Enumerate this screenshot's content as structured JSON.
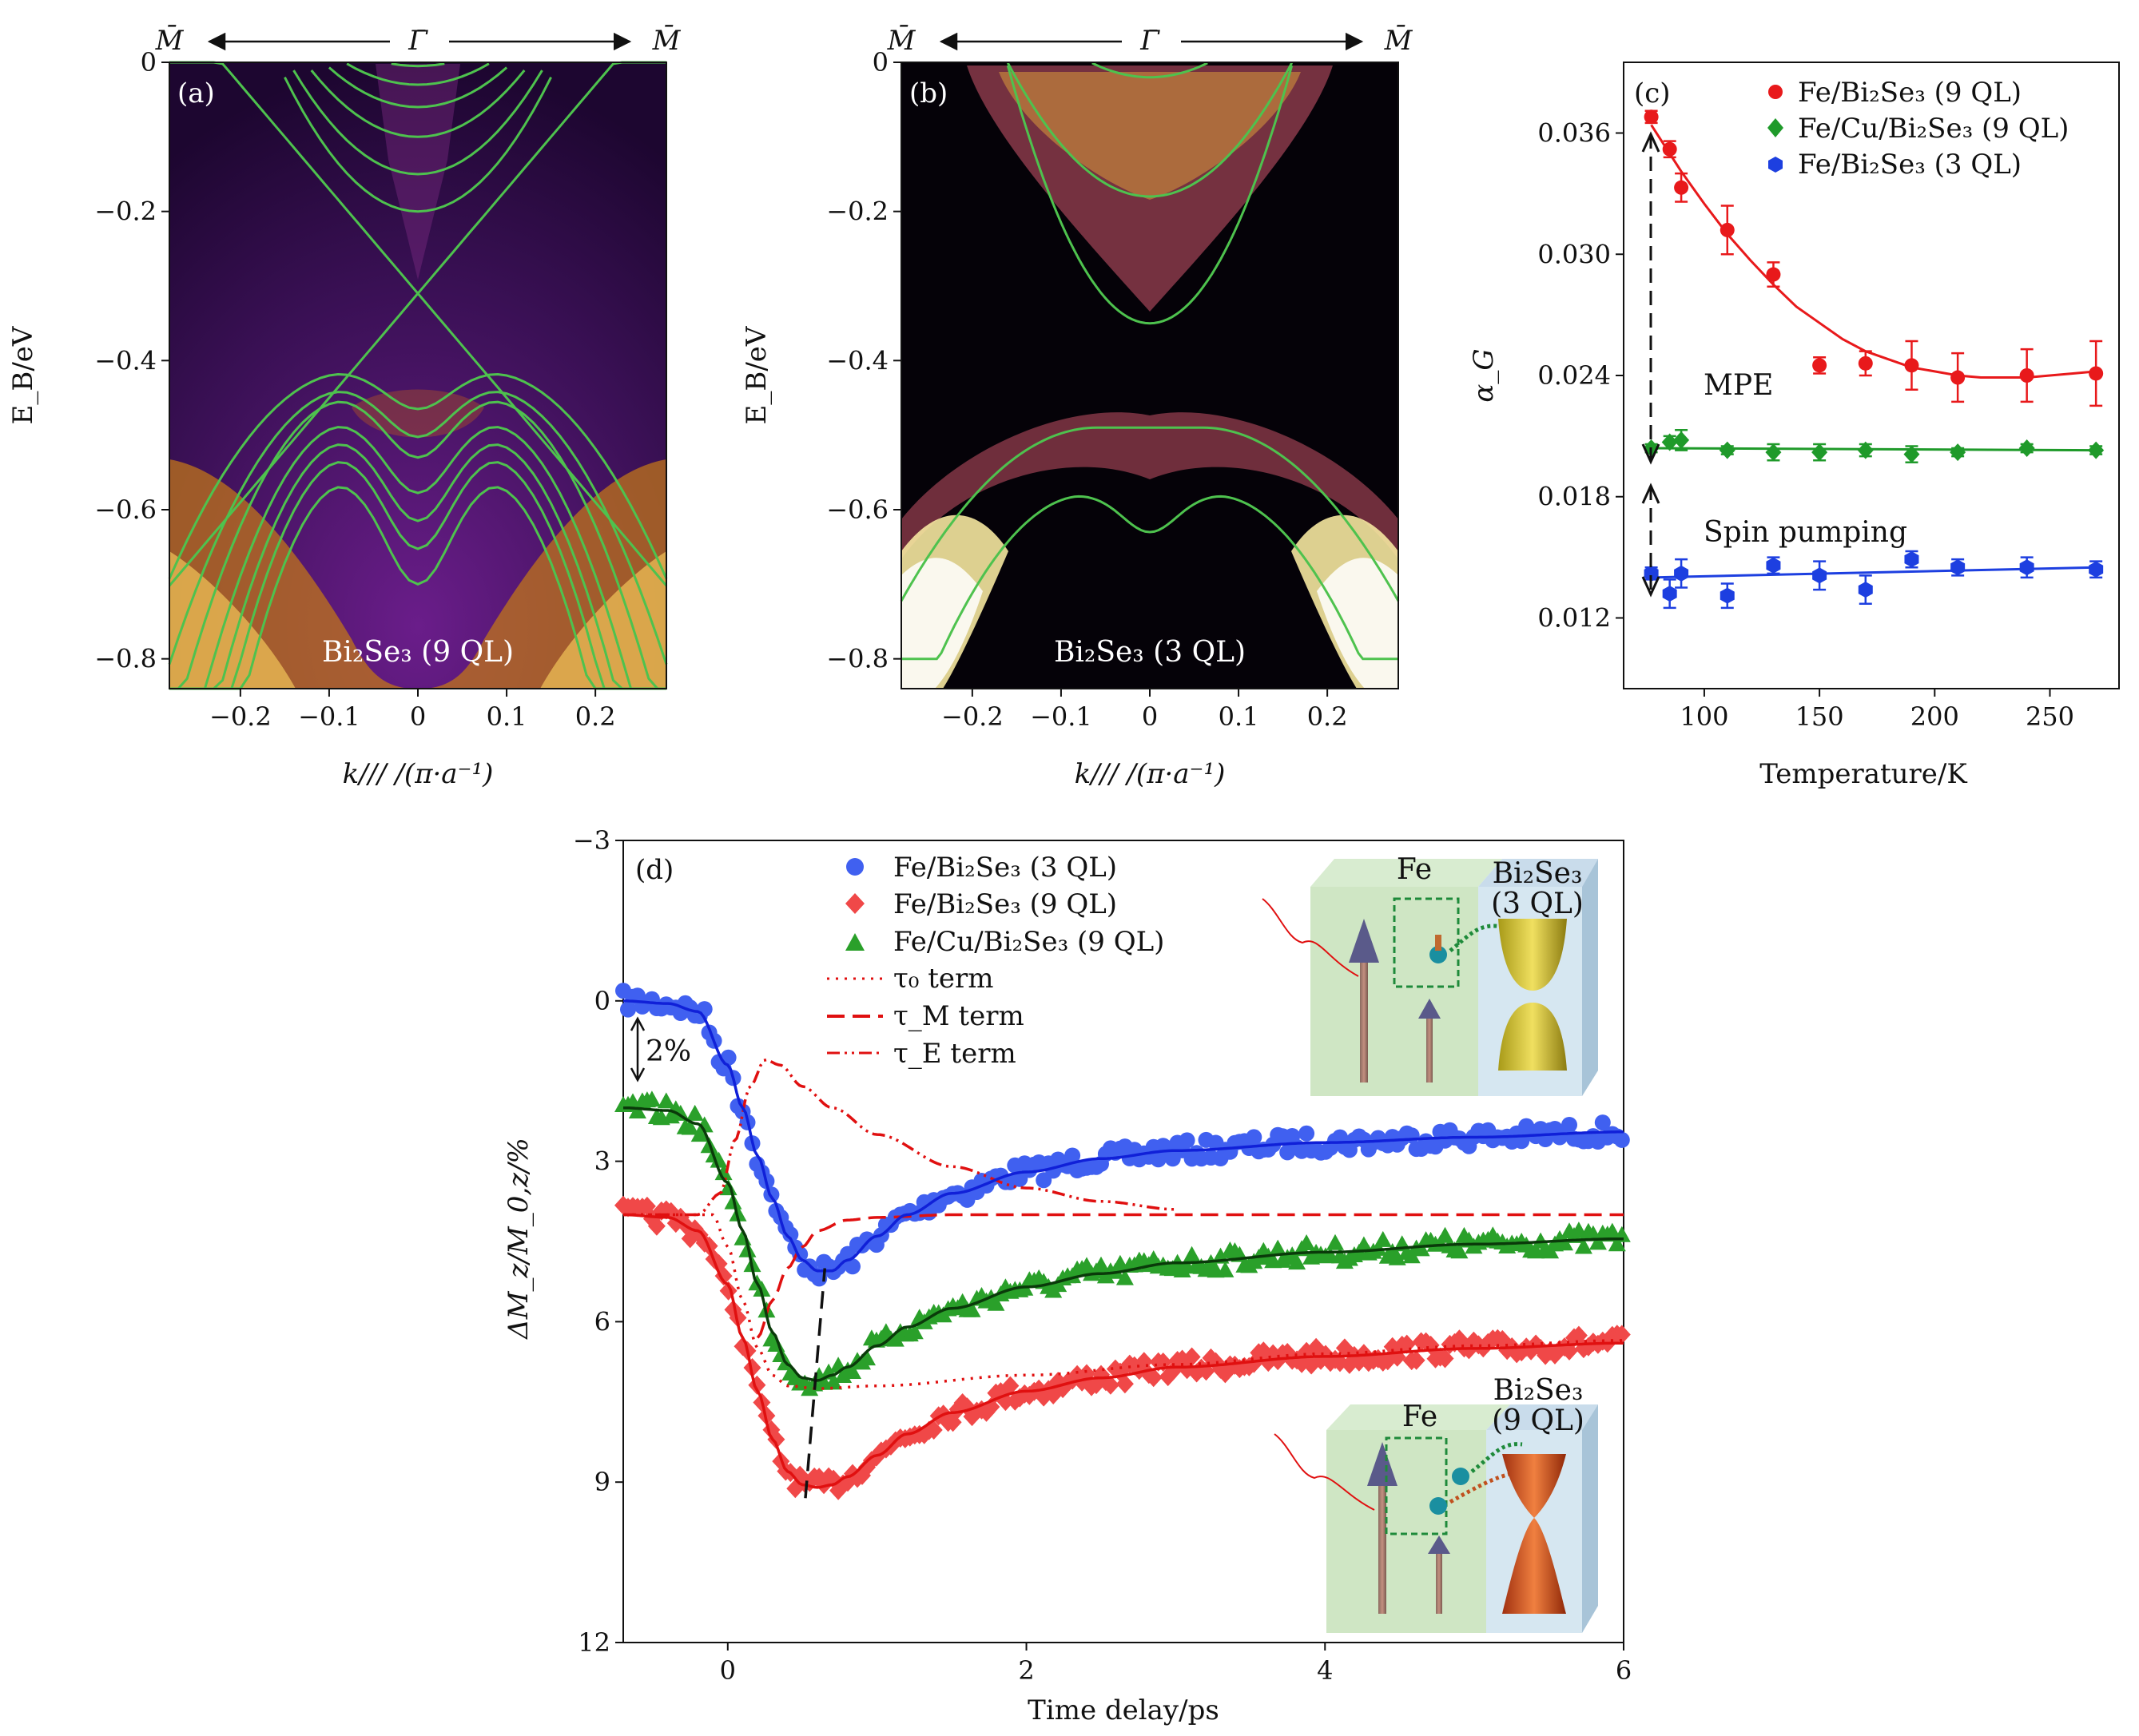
{
  "chart_data": [
    {
      "id": "a",
      "type": "heatmap",
      "panel_label": "(a)",
      "sample_label": "Bi₂Se₃ (9 QL)",
      "xlabel": "k/// /(π·a⁻¹)",
      "ylabel": "E_B/eV",
      "xlim": [
        -0.28,
        0.28
      ],
      "ylim": [
        -0.84,
        0.0
      ],
      "xticks": [
        -0.2,
        -0.1,
        0,
        0.1,
        0.2
      ],
      "xtick_labels": [
        "−0.2",
        "−0.1",
        "0",
        "0.1",
        "0.2"
      ],
      "yticks": [
        0,
        -0.2,
        -0.4,
        -0.6,
        -0.8
      ],
      "ytick_labels": [
        "0",
        "−0.2",
        "−0.4",
        "−0.6",
        "−0.8"
      ],
      "top_labels": [
        "M̄",
        "Γ̄",
        "M̄"
      ],
      "band_color": "#4ec24e",
      "conduction_band_minima": [
        -0.005,
        -0.03,
        -0.06,
        -0.1,
        -0.15,
        -0.2
      ],
      "dirac_point": -0.31,
      "valence_band_tops": [
        -0.41,
        -0.44,
        -0.46,
        -0.5,
        -0.53,
        -0.56,
        -0.6
      ]
    },
    {
      "id": "b",
      "type": "heatmap",
      "panel_label": "(b)",
      "sample_label": "Bi₂Se₃ (3 QL)",
      "xlabel": "k/// /(π·a⁻¹)",
      "ylabel": "E_B/eV",
      "xlim": [
        -0.28,
        0.28
      ],
      "ylim": [
        -0.84,
        0.0
      ],
      "xticks": [
        -0.2,
        -0.1,
        0,
        0.1,
        0.2
      ],
      "xtick_labels": [
        "−0.2",
        "−0.1",
        "0",
        "0.1",
        "0.2"
      ],
      "yticks": [
        0,
        -0.2,
        -0.4,
        -0.6,
        -0.8
      ],
      "ytick_labels": [
        "0",
        "−0.2",
        "−0.4",
        "−0.6",
        "−0.8"
      ],
      "top_labels": [
        "M̄",
        "Γ̄",
        "M̄"
      ],
      "band_color": "#4ec24e",
      "conduction_band_minima": [
        -0.02,
        -0.18,
        -0.35
      ],
      "valence_band_tops": [
        -0.49,
        -0.63
      ]
    },
    {
      "id": "c",
      "type": "scatter",
      "panel_label": "(c)",
      "xlabel": "Temperature/K",
      "ylabel": "α_G",
      "xlim": [
        65,
        280
      ],
      "ylim": [
        0.0085,
        0.0395
      ],
      "xticks": [
        100,
        150,
        200,
        250
      ],
      "xtick_labels": [
        "100",
        "150",
        "200",
        "250"
      ],
      "yticks": [
        0.012,
        0.018,
        0.024,
        0.03,
        0.036
      ],
      "ytick_labels": [
        "0.012",
        "0.018",
        "0.024",
        "0.030",
        "0.036"
      ],
      "annotations": [
        "MPE",
        "Spin pumping"
      ],
      "series": [
        {
          "name": "Fe/Bi₂Se₃ (9 QL)",
          "color": "#e8191b",
          "marker": "circle",
          "x": [
            77,
            85,
            90,
            110,
            130,
            150,
            170,
            190,
            210,
            240,
            270
          ],
          "y": [
            0.0368,
            0.0352,
            0.0333,
            0.0312,
            0.029,
            0.0245,
            0.0246,
            0.0245,
            0.0239,
            0.024,
            0.0241
          ],
          "err": [
            0.0003,
            0.0004,
            0.0007,
            0.0012,
            0.0006,
            0.0004,
            0.0006,
            0.0012,
            0.0012,
            0.0013,
            0.0016
          ],
          "fit_x": [
            77,
            90,
            100,
            110,
            120,
            130,
            140,
            150,
            160,
            170,
            180,
            190,
            200,
            210,
            220,
            230,
            240,
            250,
            260,
            270
          ],
          "fit_y": [
            0.0364,
            0.0341,
            0.0325,
            0.031,
            0.0297,
            0.0285,
            0.0274,
            0.0266,
            0.0258,
            0.0252,
            0.0248,
            0.0244,
            0.0242,
            0.024,
            0.0239,
            0.0239,
            0.0239,
            0.024,
            0.0241,
            0.0242
          ]
        },
        {
          "name": "Fe/Cu/Bi₂Se₃ (9 QL)",
          "color": "#1f9a2a",
          "marker": "diamond",
          "x": [
            77,
            85,
            90,
            110,
            130,
            150,
            170,
            190,
            210,
            240,
            270
          ],
          "y": [
            0.0204,
            0.0207,
            0.0208,
            0.0203,
            0.0202,
            0.0202,
            0.0203,
            0.0201,
            0.0202,
            0.0204,
            0.0203
          ],
          "err": [
            0.0002,
            0.0003,
            0.0005,
            0.0002,
            0.0004,
            0.0004,
            0.0003,
            0.0004,
            0.0002,
            0.0002,
            0.0002
          ],
          "fit_x": [
            77,
            270
          ],
          "fit_y": [
            0.0204,
            0.0203
          ]
        },
        {
          "name": "Fe/Bi₂Se₃ (3 QL)",
          "color": "#1d3fe0",
          "marker": "hexagon",
          "x": [
            77,
            85,
            90,
            110,
            130,
            150,
            170,
            190,
            210,
            240,
            270
          ],
          "y": [
            0.0142,
            0.0132,
            0.0142,
            0.0131,
            0.0146,
            0.0141,
            0.0134,
            0.0149,
            0.0145,
            0.0145,
            0.0144
          ],
          "err": [
            0.0003,
            0.0007,
            0.0007,
            0.0006,
            0.0004,
            0.0007,
            0.0007,
            0.0004,
            0.0004,
            0.0005,
            0.0004
          ],
          "fit_x": [
            77,
            270
          ],
          "fit_y": [
            0.014,
            0.0145
          ]
        }
      ]
    },
    {
      "id": "d",
      "type": "scatter",
      "panel_label": "(d)",
      "xlabel": "Time delay/ps",
      "ylabel": "ΔM_z/M_0,z/%",
      "xlim": [
        -0.7,
        6.0
      ],
      "ylim": [
        12,
        -3
      ],
      "xticks": [
        0,
        2,
        4,
        6
      ],
      "xtick_labels": [
        "0",
        "2",
        "4",
        "6"
      ],
      "yticks": [
        -3,
        0,
        3,
        6,
        9,
        12
      ],
      "ytick_labels": [
        "−3",
        "0",
        "3",
        "6",
        "9",
        "12"
      ],
      "scale_bar_label": "2%",
      "legend": [
        "Fe/Bi₂Se₃ (3 QL)",
        "Fe/Bi₂Se₃ (9 QL)",
        "Fe/Cu/Bi₂Se₃ (9 QL)",
        "τ₀ term",
        "τ_M term",
        "τ_E term"
      ],
      "series": [
        {
          "name": "Fe/Bi₂Se₃ (3 QL)",
          "color": "#4060f0",
          "fit_color": "#1020d8",
          "marker": "circle",
          "x": [
            -0.7,
            -0.4,
            -0.2,
            0.0,
            0.1,
            0.2,
            0.3,
            0.4,
            0.5,
            0.6,
            0.7,
            0.8,
            1.0,
            1.2,
            1.5,
            2.0,
            2.5,
            3.0,
            4.0,
            5.0,
            6.0
          ],
          "y": [
            0.0,
            0.05,
            0.2,
            1.2,
            2.0,
            2.9,
            3.7,
            4.4,
            4.85,
            5.05,
            5.05,
            4.85,
            4.4,
            4.0,
            3.6,
            3.2,
            2.95,
            2.8,
            2.65,
            2.55,
            2.45
          ]
        },
        {
          "name": "Fe/Bi₂Se₃ (9 QL)",
          "color": "#f04848",
          "fit_color": "#e01010",
          "marker": "diamond",
          "x": [
            -0.7,
            -0.4,
            -0.2,
            0.0,
            0.1,
            0.2,
            0.3,
            0.4,
            0.5,
            0.6,
            0.7,
            0.8,
            1.0,
            1.2,
            1.5,
            2.0,
            2.5,
            3.0,
            4.0,
            5.0,
            6.0
          ],
          "y": [
            4.0,
            4.05,
            4.3,
            5.3,
            6.3,
            7.3,
            8.2,
            8.8,
            9.05,
            9.1,
            9.05,
            8.9,
            8.5,
            8.1,
            7.7,
            7.3,
            7.05,
            6.85,
            6.65,
            6.5,
            6.4
          ]
        },
        {
          "name": "Fe/Cu/Bi₂Se₃ (9 QL)",
          "color": "#2aa02a",
          "fit_color": "#0a3a0a",
          "marker": "triangle",
          "x": [
            -0.7,
            -0.4,
            -0.2,
            0.0,
            0.1,
            0.2,
            0.3,
            0.4,
            0.5,
            0.6,
            0.7,
            0.8,
            1.0,
            1.2,
            1.5,
            2.0,
            2.5,
            3.0,
            4.0,
            5.0,
            6.0
          ],
          "y": [
            2.0,
            2.05,
            2.3,
            3.4,
            4.3,
            5.3,
            6.2,
            6.8,
            7.05,
            7.1,
            7.0,
            6.85,
            6.45,
            6.1,
            5.75,
            5.35,
            5.1,
            4.9,
            4.7,
            4.55,
            4.45
          ]
        }
      ],
      "terms": [
        {
          "name": "τ₀ term",
          "color": "#e01010",
          "style": "dotted",
          "x": [
            -0.7,
            -0.1,
            0.0,
            0.1,
            0.2,
            0.3,
            0.4,
            0.6,
            1.0,
            2.0,
            3.0,
            4.0,
            5.0,
            6.0
          ],
          "y": [
            4.0,
            4.0,
            4.6,
            5.6,
            6.5,
            7.0,
            7.2,
            7.25,
            7.2,
            7.0,
            6.8,
            6.6,
            6.45,
            6.35
          ]
        },
        {
          "name": "τ_M term",
          "color": "#e01010",
          "style": "dashed",
          "x": [
            0.2,
            0.3,
            0.4,
            0.5,
            0.6,
            0.8,
            1.0,
            1.5,
            2.0,
            3.0,
            4.0,
            5.0,
            6.0
          ],
          "y": [
            6.3,
            5.6,
            5.0,
            4.6,
            4.3,
            4.1,
            4.05,
            4.0,
            4.0,
            4.0,
            4.0,
            4.0,
            4.0
          ]
        },
        {
          "name": "τ_E term",
          "color": "#e01010",
          "style": "dashdotdot",
          "x": [
            -0.7,
            -0.2,
            -0.05,
            0.05,
            0.15,
            0.25,
            0.35,
            0.5,
            0.7,
            1.0,
            1.5,
            2.0,
            2.5,
            3.0
          ],
          "y": [
            4.0,
            4.0,
            3.6,
            2.6,
            1.6,
            1.1,
            1.2,
            1.6,
            2.0,
            2.5,
            3.1,
            3.5,
            3.75,
            3.9
          ]
        }
      ],
      "minimum_guide": {
        "color": "#111111",
        "x": [
          0.52,
          0.65
        ],
        "y": [
          9.3,
          5.0
        ]
      },
      "insets": [
        {
          "labels": [
            "Fe",
            "Bi₂Se₃",
            "(3 QL)"
          ]
        },
        {
          "labels": [
            "Fe",
            "Bi₂Se₃",
            "(9 QL)"
          ]
        }
      ]
    }
  ]
}
